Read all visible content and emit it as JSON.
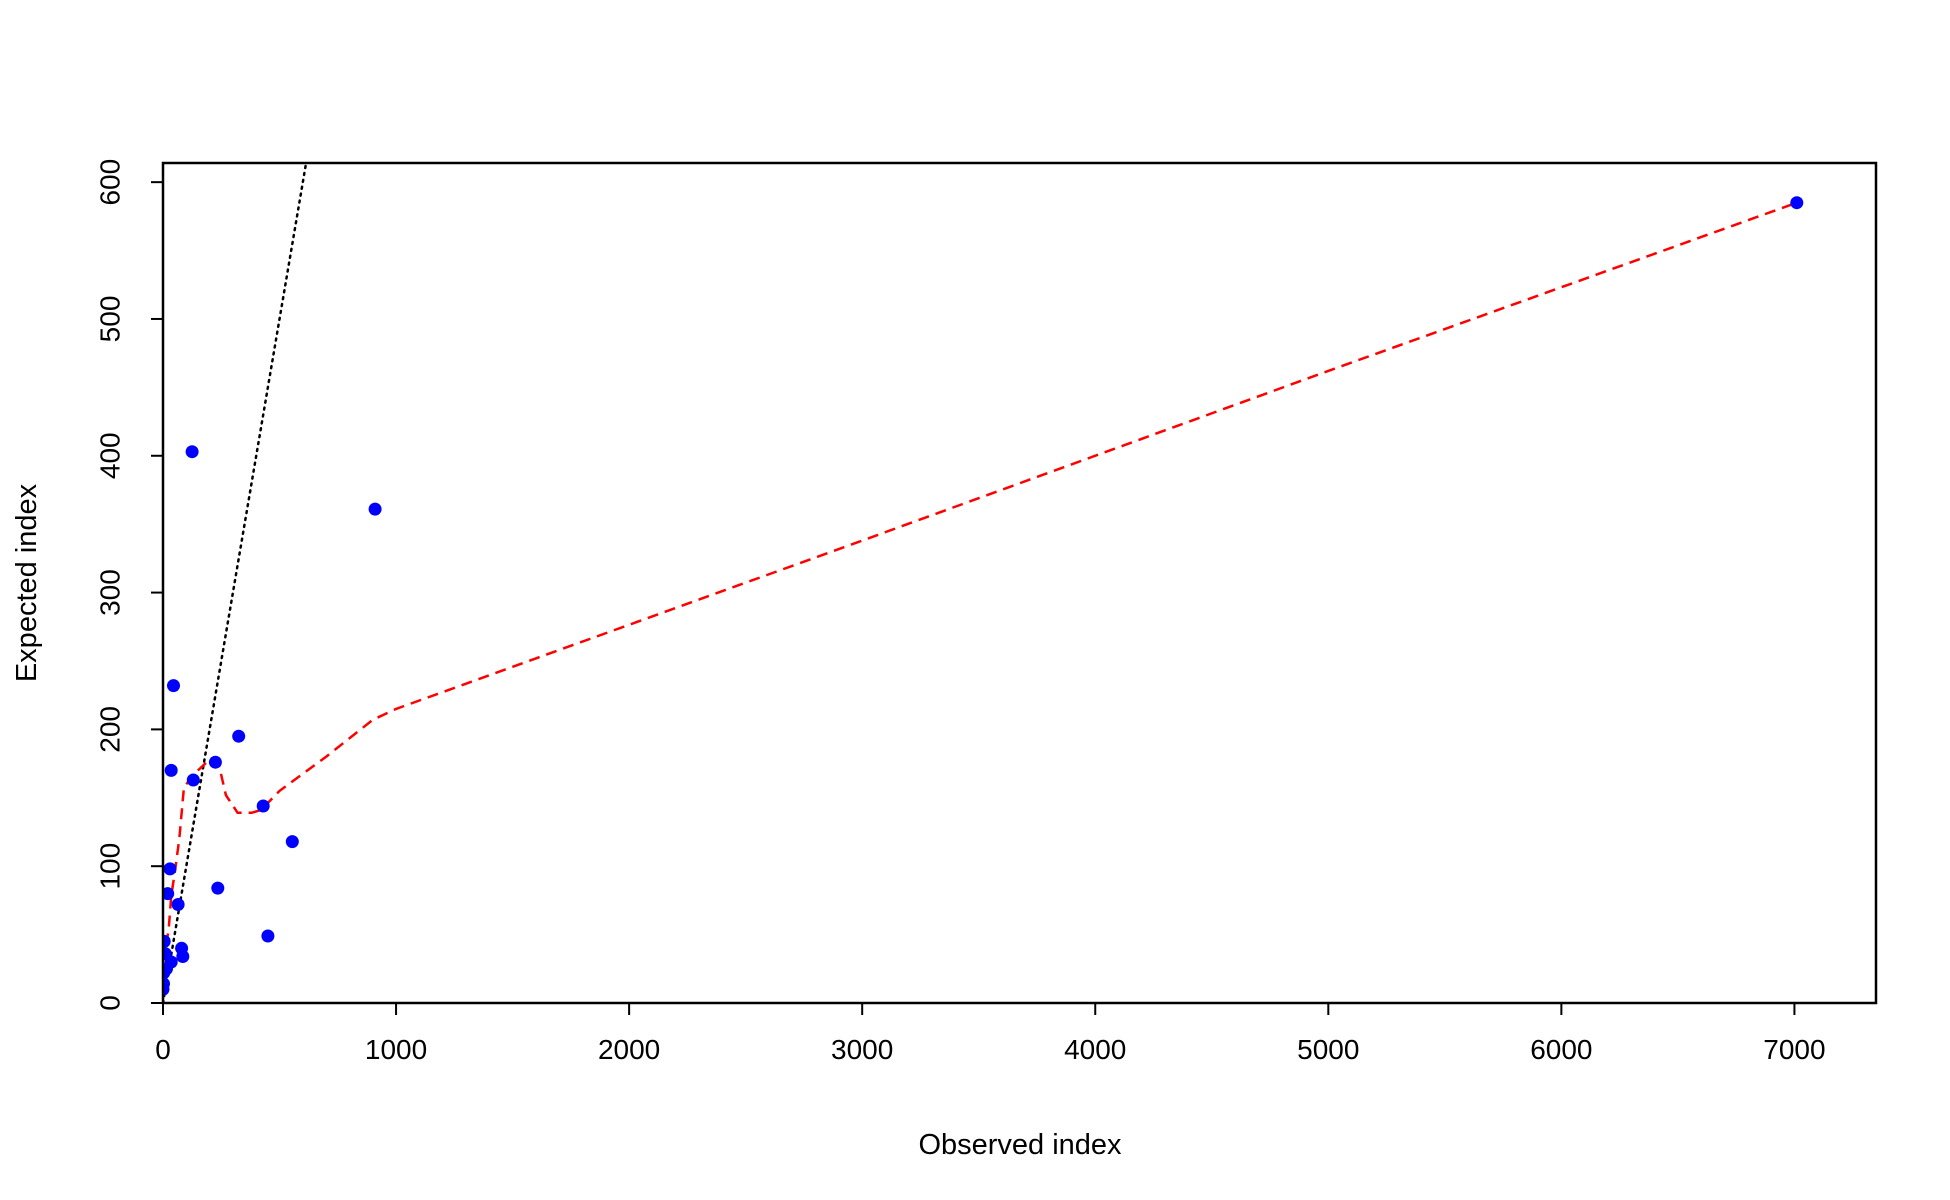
{
  "chart_data": {
    "type": "scatter",
    "xlabel": "Observed index",
    "ylabel": "Expected index",
    "xlim": [
      0,
      7350
    ],
    "ylim": [
      0,
      614
    ],
    "x_ticks": [
      0,
      1000,
      2000,
      3000,
      4000,
      5000,
      6000,
      7000
    ],
    "y_ticks": [
      0,
      100,
      200,
      300,
      400,
      500,
      600
    ],
    "grid": false,
    "legend": "none",
    "colors": {
      "points": "#0000ff",
      "smooth_line": "#ff0000",
      "reference_line": "#000000"
    },
    "series": [
      {
        "kind": "points",
        "x": [
          0,
          2,
          3,
          5,
          10,
          15,
          20,
          30,
          35,
          35,
          45,
          65,
          80,
          85,
          125,
          130,
          225,
          235,
          325,
          430,
          450,
          555,
          910,
          7010
        ],
        "y": [
          10,
          14,
          22,
          45,
          36,
          25,
          80,
          98,
          170,
          30,
          232,
          72,
          40,
          34,
          403,
          163,
          176,
          84,
          195,
          144,
          49,
          118,
          361,
          585
        ]
      },
      {
        "kind": "smooth-line",
        "style": "dashed",
        "x": [
          0,
          10,
          25,
          35,
          50,
          70,
          90,
          110,
          150,
          200,
          240,
          270,
          320,
          380,
          420,
          500,
          700,
          900,
          1000,
          3000,
          5000,
          7010
        ],
        "y": [
          30,
          38,
          55,
          78,
          95,
          120,
          158,
          162,
          170,
          178,
          174,
          152,
          139,
          139,
          141,
          155,
          180,
          207,
          215,
          338,
          462,
          585
        ]
      },
      {
        "kind": "reference-line",
        "style": "dotted",
        "x": [
          0,
          614
        ],
        "y": [
          0,
          614
        ]
      }
    ]
  }
}
